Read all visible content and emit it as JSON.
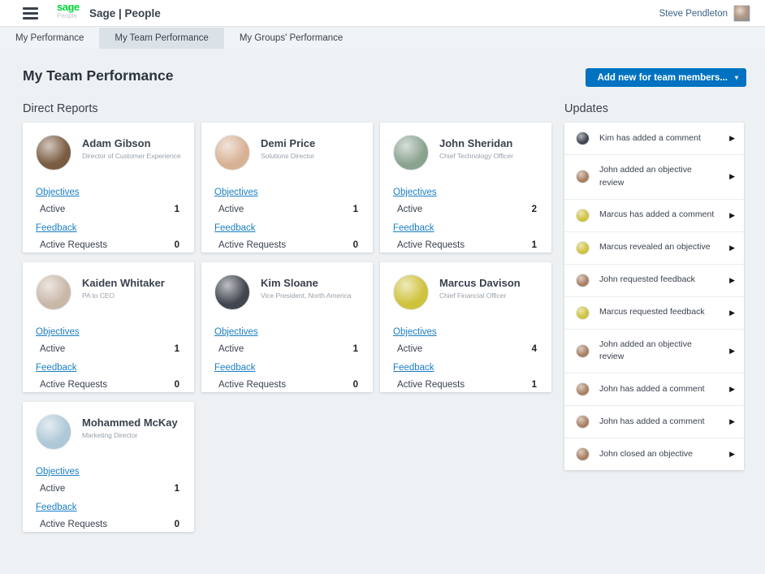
{
  "header": {
    "logo_top": "sage",
    "logo_bottom": "People",
    "app_title": "Sage | People",
    "user_name": "Steve Pendleton"
  },
  "tabs": [
    {
      "label": "My Performance",
      "active": false
    },
    {
      "label": "My Team Performance",
      "active": true
    },
    {
      "label": "My Groups' Performance",
      "active": false
    }
  ],
  "page": {
    "title": "My Team Performance",
    "add_button_label": "Add new for team members...",
    "direct_reports_heading": "Direct Reports",
    "updates_heading": "Updates"
  },
  "card_labels": {
    "objectives": "Objectives",
    "active": "Active",
    "feedback": "Feedback",
    "active_requests": "Active Requests"
  },
  "direct_reports": [
    {
      "name": "Adam Gibson",
      "title": "Director of Customer Experience",
      "active": 1,
      "active_requests": 0,
      "avatar_color": "#7a5c42"
    },
    {
      "name": "Demi Price",
      "title": "Solutions Director",
      "active": 1,
      "active_requests": 0,
      "avatar_color": "#d8b195"
    },
    {
      "name": "John Sheridan",
      "title": "Chief Technology Officer",
      "active": 2,
      "active_requests": 1,
      "avatar_color": "#8aa38f"
    },
    {
      "name": "Kaiden Whitaker",
      "title": "PA to CEO",
      "active": 1,
      "active_requests": 0,
      "avatar_color": "#c9b8a8"
    },
    {
      "name": "Kim Sloane",
      "title": "Vice President, North America",
      "active": 1,
      "active_requests": 0,
      "avatar_color": "#41464f"
    },
    {
      "name": "Marcus Davison",
      "title": "Chief Financial Officer",
      "active": 4,
      "active_requests": 1,
      "avatar_color": "#cfc23d"
    },
    {
      "name": "Mohammed McKay",
      "title": "Marketing Director",
      "active": 1,
      "active_requests": 0,
      "avatar_color": "#aec8d8"
    }
  ],
  "updates": [
    {
      "person": "Kim",
      "text": "Kim has added a comment"
    },
    {
      "person": "John",
      "text": "John added an objective review"
    },
    {
      "person": "Marcus",
      "text": "Marcus has added a comment"
    },
    {
      "person": "Marcus",
      "text": "Marcus revealed an objective"
    },
    {
      "person": "John",
      "text": "John requested feedback"
    },
    {
      "person": "Marcus",
      "text": "Marcus requested feedback"
    },
    {
      "person": "John",
      "text": "John added an objective review"
    },
    {
      "person": "John",
      "text": "John has added a comment"
    },
    {
      "person": "John",
      "text": "John has added a comment"
    },
    {
      "person": "John",
      "text": "John closed an objective"
    }
  ],
  "people_colors": {
    "Kim": "#41464f",
    "John": "#a97f63",
    "Marcus": "#cfc23d"
  },
  "colors": {
    "accent_blue": "#0072c1",
    "link_blue": "#1b7fc3",
    "sage_green": "#00d639",
    "page_bg": "#eef1f3",
    "active_tab_bg": "#dbe2e7",
    "text_dark": "#39414d",
    "text_muted": "#9aa3ab"
  }
}
